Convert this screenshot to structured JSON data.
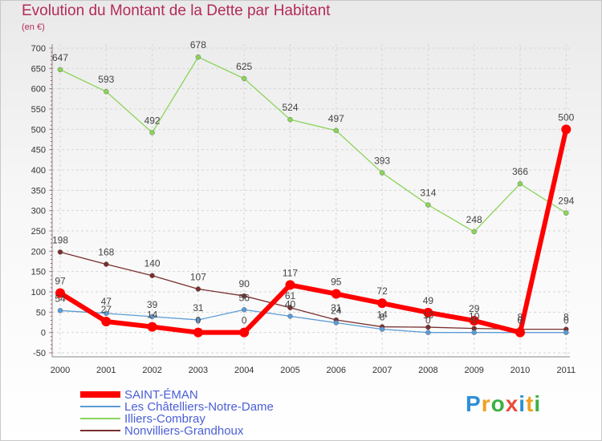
{
  "title": "Evolution du Montant de la Dette par Habitant",
  "subtitle": "(en €)",
  "brand": {
    "letters": [
      "P",
      "r",
      "o",
      "x",
      "i",
      "t",
      "i"
    ],
    "colors": [
      "#2f8fd8",
      "#f0a020",
      "#3cb043",
      "#e84c3d",
      "#2f8fd8",
      "#f0a020",
      "#3cb043"
    ]
  },
  "chart_data": {
    "type": "line",
    "x": [
      "2000",
      "2001",
      "2002",
      "2003",
      "2004",
      "2005",
      "2006",
      "2007",
      "2008",
      "2009",
      "2010",
      "2011"
    ],
    "ylim": [
      -50,
      700
    ],
    "yticks": [
      -50,
      0,
      50,
      100,
      150,
      200,
      250,
      300,
      350,
      400,
      450,
      500,
      550,
      600,
      650,
      700
    ],
    "grid": true,
    "legend_position": "bottom-left",
    "series": [
      {
        "name": "SAINT-ÉMAN",
        "color": "#ff0000",
        "values": [
          97,
          27,
          14,
          0,
          0,
          117,
          95,
          72,
          49,
          29,
          0,
          500
        ],
        "labels": [
          "97",
          "27",
          "14",
          "0",
          "0",
          "117",
          "95",
          "72",
          "49",
          "29",
          "0",
          "500"
        ]
      },
      {
        "name": "Les Châtelliers-Notre-Dame",
        "color": "#5b9bd5",
        "values": [
          54,
          47,
          39,
          31,
          56,
          40,
          24,
          8,
          0,
          0,
          0,
          0
        ],
        "labels": [
          "54",
          "47",
          "39",
          "31",
          "56",
          "40",
          "24",
          "8",
          "0",
          "0",
          "0",
          "0"
        ]
      },
      {
        "name": "Illiers-Combray",
        "color": "#8bd45a",
        "values": [
          647,
          593,
          492,
          678,
          625,
          524,
          497,
          393,
          314,
          248,
          366,
          294
        ],
        "labels": [
          "647",
          "593",
          "492",
          "678",
          "625",
          "524",
          "497",
          "393",
          "314",
          "248",
          "366",
          "294"
        ]
      },
      {
        "name": "Nonvilliers-Grandhoux",
        "color": "#7a2f2f",
        "values": [
          198,
          168,
          140,
          107,
          90,
          61,
          31,
          14,
          13,
          10,
          8,
          8
        ],
        "labels": [
          "198",
          "168",
          "140",
          "107",
          "90",
          "61",
          "31",
          "14",
          "13",
          "10",
          "8",
          "8"
        ]
      }
    ]
  }
}
